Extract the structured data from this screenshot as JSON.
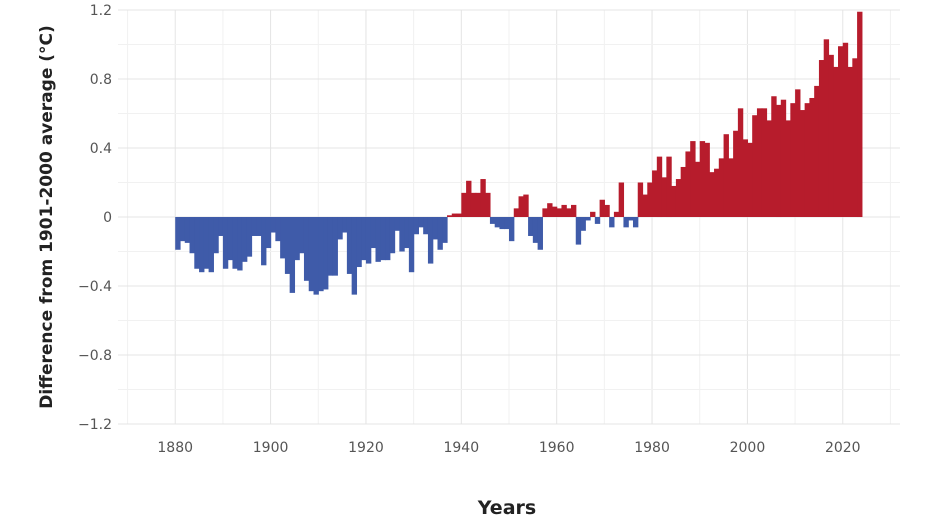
{
  "chart_data": {
    "type": "bar",
    "title": "",
    "xlabel": "Years",
    "ylabel": "Difference from 1901-2000 average (°C)",
    "xlim": [
      1868,
      2032
    ],
    "ylim": [
      -1.2,
      1.2
    ],
    "x_ticks": [
      1880,
      1900,
      1920,
      1940,
      1960,
      1980,
      2000,
      2020
    ],
    "x_tick_labels": [
      "1880",
      "1900",
      "1920",
      "1940",
      "1960",
      "1980",
      "2000",
      "2020"
    ],
    "y_ticks": [
      -1.2,
      -0.8,
      -0.4,
      0,
      0.4,
      0.8,
      1.2
    ],
    "y_tick_labels": [
      "−1.2",
      "−0.8",
      "−0.4",
      "0",
      "0.4",
      "0.8",
      "1.2"
    ],
    "grid": true,
    "colors": {
      "positive": "#b71c2c",
      "negative": "#3f5ba9",
      "grid": "#e6e6e6"
    },
    "start_year": 1880,
    "end_year": 2023,
    "years": [
      1880,
      1881,
      1882,
      1883,
      1884,
      1885,
      1886,
      1887,
      1888,
      1889,
      1890,
      1891,
      1892,
      1893,
      1894,
      1895,
      1896,
      1897,
      1898,
      1899,
      1900,
      1901,
      1902,
      1903,
      1904,
      1905,
      1906,
      1907,
      1908,
      1909,
      1910,
      1911,
      1912,
      1913,
      1914,
      1915,
      1916,
      1917,
      1918,
      1919,
      1920,
      1921,
      1922,
      1923,
      1924,
      1925,
      1926,
      1927,
      1928,
      1929,
      1930,
      1931,
      1932,
      1933,
      1934,
      1935,
      1936,
      1937,
      1938,
      1939,
      1940,
      1941,
      1942,
      1943,
      1944,
      1945,
      1946,
      1947,
      1948,
      1949,
      1950,
      1951,
      1952,
      1953,
      1954,
      1955,
      1956,
      1957,
      1958,
      1959,
      1960,
      1961,
      1962,
      1963,
      1964,
      1965,
      1966,
      1967,
      1968,
      1969,
      1970,
      1971,
      1972,
      1973,
      1974,
      1975,
      1976,
      1977,
      1978,
      1979,
      1980,
      1981,
      1982,
      1983,
      1984,
      1985,
      1986,
      1987,
      1988,
      1989,
      1990,
      1991,
      1992,
      1993,
      1994,
      1995,
      1996,
      1997,
      1998,
      1999,
      2000,
      2001,
      2002,
      2003,
      2004,
      2005,
      2006,
      2007,
      2008,
      2009,
      2010,
      2011,
      2012,
      2013,
      2014,
      2015,
      2016,
      2017,
      2018,
      2019,
      2020,
      2021,
      2022,
      2023
    ],
    "values": [
      -0.19,
      -0.14,
      -0.15,
      -0.21,
      -0.3,
      -0.32,
      -0.3,
      -0.32,
      -0.21,
      -0.11,
      -0.3,
      -0.25,
      -0.3,
      -0.31,
      -0.26,
      -0.23,
      -0.11,
      -0.11,
      -0.28,
      -0.18,
      -0.09,
      -0.14,
      -0.24,
      -0.33,
      -0.44,
      -0.25,
      -0.21,
      -0.37,
      -0.43,
      -0.45,
      -0.43,
      -0.42,
      -0.34,
      -0.34,
      -0.13,
      -0.09,
      -0.33,
      -0.45,
      -0.29,
      -0.25,
      -0.27,
      -0.18,
      -0.26,
      -0.25,
      -0.25,
      -0.21,
      -0.08,
      -0.2,
      -0.18,
      -0.32,
      -0.1,
      -0.06,
      -0.1,
      -0.27,
      -0.13,
      -0.19,
      -0.15,
      0.01,
      0.02,
      0.02,
      0.14,
      0.21,
      0.14,
      0.14,
      0.22,
      0.14,
      -0.04,
      -0.06,
      -0.07,
      -0.07,
      -0.14,
      0.05,
      0.12,
      0.13,
      -0.11,
      -0.15,
      -0.19,
      0.05,
      0.08,
      0.06,
      0.05,
      0.07,
      0.05,
      0.07,
      -0.16,
      -0.08,
      -0.02,
      0.03,
      -0.04,
      0.1,
      0.07,
      -0.06,
      0.03,
      0.2,
      -0.06,
      -0.02,
      -0.06,
      0.2,
      0.13,
      0.2,
      0.27,
      0.35,
      0.23,
      0.35,
      0.18,
      0.22,
      0.29,
      0.38,
      0.44,
      0.32,
      0.44,
      0.43,
      0.26,
      0.28,
      0.34,
      0.48,
      0.34,
      0.5,
      0.63,
      0.45,
      0.43,
      0.59,
      0.63,
      0.63,
      0.56,
      0.7,
      0.65,
      0.68,
      0.56,
      0.66,
      0.74,
      0.62,
      0.66,
      0.69,
      0.76,
      0.91,
      1.03,
      0.94,
      0.87,
      0.99,
      1.01,
      0.87,
      0.92,
      1.19
    ]
  }
}
